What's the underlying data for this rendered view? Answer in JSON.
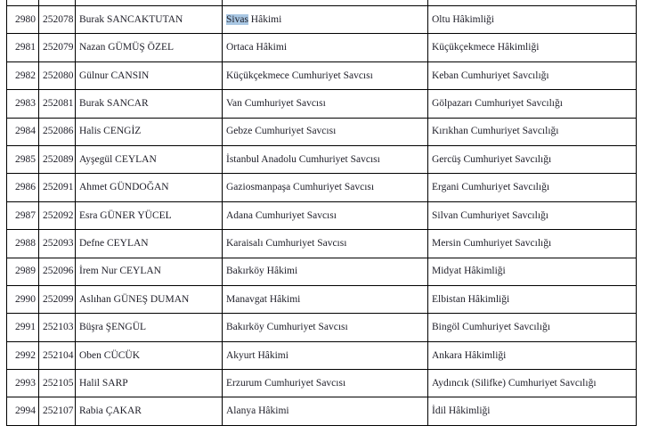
{
  "document": {
    "type": "appointment-list-table",
    "language": "tr",
    "text_color": "#1d1d27",
    "border_color": "#000000",
    "selection_highlight_color": "#a9c7e3"
  },
  "table": {
    "columns": [
      "row-number",
      "registry-number",
      "name",
      "current-post",
      "new-post"
    ],
    "rows": [
      {
        "no": "2980",
        "id": "252078",
        "name": "Burak SANCAKTUTAN",
        "current": "Sivas Hâkimi",
        "highlight": "Sivas",
        "new": "Oltu Hâkimliği"
      },
      {
        "no": "2981",
        "id": "252079",
        "name": "Nazan GÜMÜŞ ÖZEL",
        "current": "Ortaca Hâkimi",
        "new": "Küçükçekmece Hâkimliği"
      },
      {
        "no": "2982",
        "id": "252080",
        "name": "Gülnur CANSIN",
        "current": "Küçükçekmece Cumhuriyet Savcısı",
        "new": "Keban Cumhuriyet Savcılığı"
      },
      {
        "no": "2983",
        "id": "252081",
        "name": "Burak SANCAR",
        "current": "Van Cumhuriyet Savcısı",
        "new": "Gölpazarı Cumhuriyet Savcılığı"
      },
      {
        "no": "2984",
        "id": "252086",
        "name": "Halis CENGİZ",
        "current": "Gebze Cumhuriyet Savcısı",
        "new": "Kırıkhan Cumhuriyet Savcılığı"
      },
      {
        "no": "2985",
        "id": "252089",
        "name": "Ayşegül CEYLAN",
        "current": "İstanbul Anadolu Cumhuriyet Savcısı",
        "new": "Gercüş Cumhuriyet Savcılığı"
      },
      {
        "no": "2986",
        "id": "252091",
        "name": "Ahmet GÜNDOĞAN",
        "current": "Gaziosmanpaşa Cumhuriyet Savcısı",
        "new": "Ergani Cumhuriyet Savcılığı"
      },
      {
        "no": "2987",
        "id": "252092",
        "name": "Esra GÜNER YÜCEL",
        "current": "Adana Cumhuriyet Savcısı",
        "new": "Silvan Cumhuriyet Savcılığı"
      },
      {
        "no": "2988",
        "id": "252093",
        "name": "Defne CEYLAN",
        "current": "Karaisalı Cumhuriyet Savcısı",
        "new": "Mersin Cumhuriyet Savcılığı"
      },
      {
        "no": "2989",
        "id": "252096",
        "name": "İrem Nur CEYLAN",
        "current": "Bakırköy Hâkimi",
        "new": "Midyat Hâkimliği"
      },
      {
        "no": "2990",
        "id": "252099",
        "name": "Aslıhan GÜNEŞ DUMAN",
        "current": "Manavgat Hâkimi",
        "new": "Elbistan Hâkimliği"
      },
      {
        "no": "2991",
        "id": "252103",
        "name": "Büşra ŞENGÜL",
        "current": "Bakırköy Cumhuriyet Savcısı",
        "new": "Bingöl Cumhuriyet Savcılığı"
      },
      {
        "no": "2992",
        "id": "252104",
        "name": "Oben CÜCÜK",
        "current": "Akyurt Hâkimi",
        "new": "Ankara Hâkimliği"
      },
      {
        "no": "2993",
        "id": "252105",
        "name": "Halil SARP",
        "current": "Erzurum Cumhuriyet Savcısı",
        "new": "Aydıncık (Silifke) Cumhuriyet Savcılığı"
      },
      {
        "no": "2994",
        "id": "252107",
        "name": "Rabia ÇAKAR",
        "current": "Alanya Hâkimi",
        "new": "İdil Hâkimliği"
      }
    ]
  }
}
